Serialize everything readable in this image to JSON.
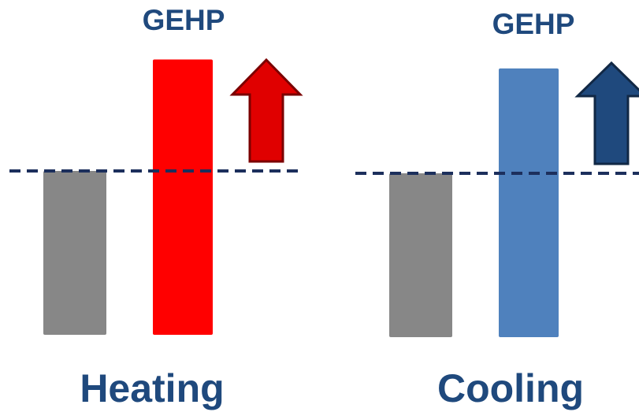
{
  "chart_data": [
    {
      "type": "bar",
      "categories": [
        "",
        "GEHP"
      ],
      "values": [
        100,
        168
      ],
      "baseline_value": 100,
      "xlabel": "Heating",
      "colors": [
        "#878787",
        "#ff0000"
      ],
      "trend": "up",
      "arrow_color": "#e00000",
      "reference_line_color": "#1c2f5c"
    },
    {
      "type": "bar",
      "categories": [
        "",
        "GEHP"
      ],
      "values": [
        100,
        164
      ],
      "baseline_value": 100,
      "xlabel": "Cooling",
      "colors": [
        "#878787",
        "#4f81bd"
      ],
      "trend": "up",
      "arrow_color": "#1f497d",
      "reference_line_color": "#1c2f5c"
    }
  ],
  "text_color": "#1f497d"
}
